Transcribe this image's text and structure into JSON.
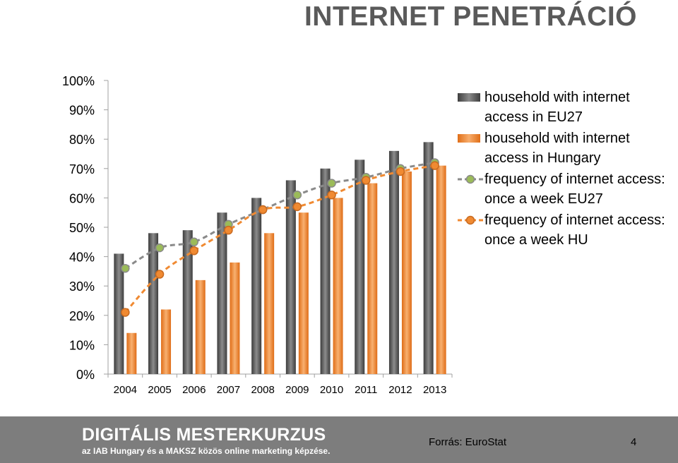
{
  "slide": {
    "title": "INTERNET PENETRÁCIÓ",
    "footer_logo": "DIGITÁLIS MESTERKURZUS",
    "footer_tagline": "az IAB Hungary és a MAKSZ közös online marketing képzése.",
    "source": "Forrás: EuroStat",
    "page_number": "4"
  },
  "chart_data": {
    "type": "bar",
    "categories": [
      "2004",
      "2005",
      "2006",
      "2007",
      "2008",
      "2009",
      "2010",
      "2011",
      "2012",
      "2013"
    ],
    "y_ticks": [
      "0%",
      "10%",
      "20%",
      "30%",
      "40%",
      "50%",
      "60%",
      "70%",
      "80%",
      "90%",
      "100%"
    ],
    "ylim": [
      0,
      100
    ],
    "grid": false,
    "legend_position": "right",
    "series": [
      {
        "name": "household with internet access in EU27",
        "kind": "bar",
        "color": "#5f5f5f",
        "values": [
          41,
          48,
          49,
          55,
          60,
          66,
          70,
          73,
          76,
          79
        ]
      },
      {
        "name": "household with internet access in Hungary",
        "kind": "bar",
        "color": "#f08a32",
        "values": [
          14,
          22,
          32,
          38,
          48,
          55,
          60,
          65,
          69,
          71
        ]
      },
      {
        "name": "frequency of internet access: once a week EU27",
        "kind": "line",
        "style": "dashed",
        "color": "#8a8a8a",
        "marker_color": "#9bbb59",
        "values": [
          36,
          43,
          45,
          51,
          56,
          61,
          65,
          67,
          70,
          72
        ]
      },
      {
        "name": "frequency of internet access: once a week HU",
        "kind": "line",
        "style": "dashed",
        "color": "#f08a32",
        "marker_color": "#f08a32",
        "values": [
          21,
          34,
          42,
          49,
          56,
          57,
          61,
          66,
          69,
          71
        ]
      }
    ]
  }
}
